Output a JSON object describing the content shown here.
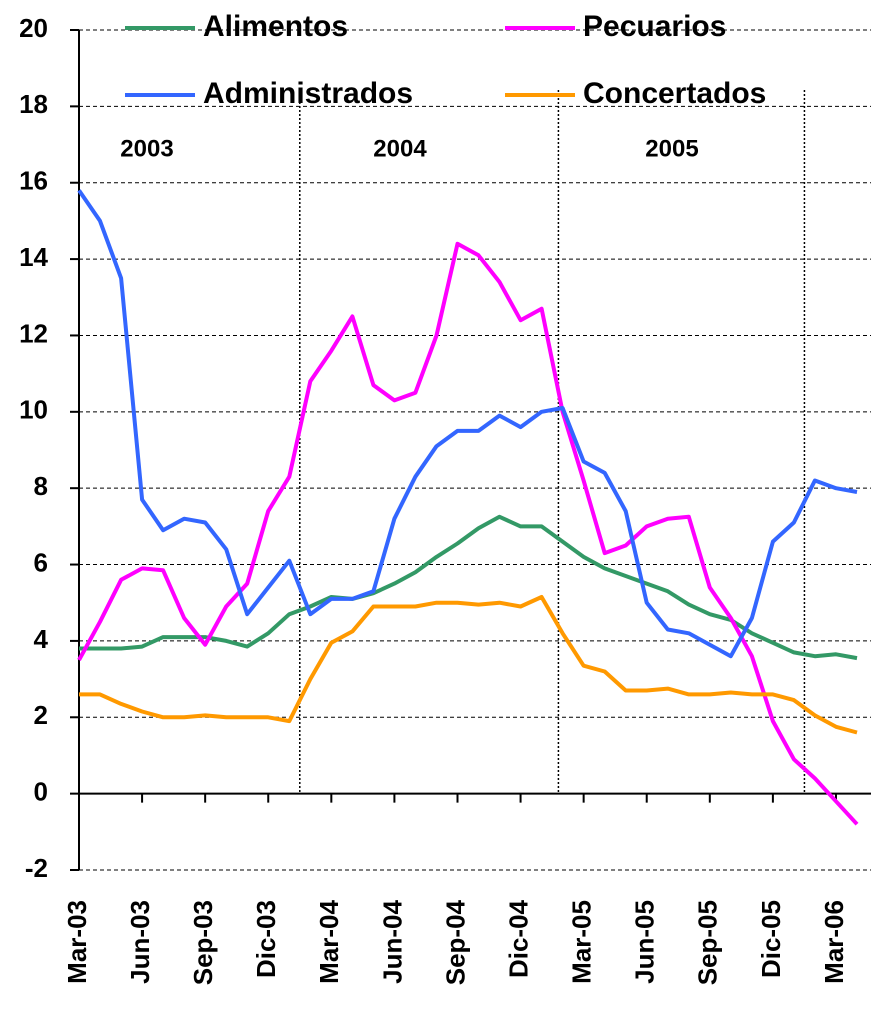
{
  "chart_data": {
    "type": "line",
    "categories": [
      "Mar-03",
      null,
      null,
      "Jun-03",
      null,
      null,
      "Sep-03",
      null,
      null,
      "Dic-03",
      null,
      null,
      "Mar-04",
      null,
      null,
      "Jun-04",
      null,
      null,
      "Sep-04",
      null,
      null,
      "Dic-04",
      null,
      null,
      "Mar-05",
      null,
      null,
      "Jun-05",
      null,
      null,
      "Sep-05",
      null,
      null,
      "Dic-05",
      null,
      null,
      "Mar-06",
      null
    ],
    "series": [
      {
        "name": "Alimentos",
        "color": "#339966",
        "values": [
          3.8,
          3.8,
          3.8,
          3.85,
          4.1,
          4.1,
          4.1,
          4.0,
          3.85,
          4.2,
          4.7,
          4.9,
          5.15,
          5.1,
          5.25,
          5.5,
          5.8,
          6.2,
          6.55,
          6.95,
          7.25,
          7.0,
          7.0,
          6.6,
          6.2,
          5.9,
          5.7,
          5.5,
          5.3,
          4.95,
          4.7,
          4.55,
          4.2,
          3.95,
          3.7,
          3.6,
          3.65,
          3.55
        ]
      },
      {
        "name": "Pecuarios",
        "color": "#ff00ff",
        "values": [
          3.5,
          4.5,
          5.6,
          5.9,
          5.85,
          4.6,
          3.9,
          4.9,
          5.5,
          7.4,
          8.3,
          10.8,
          11.6,
          12.5,
          10.7,
          10.3,
          10.5,
          12.0,
          14.4,
          14.1,
          13.4,
          12.4,
          12.7,
          10.0,
          8.2,
          6.3,
          6.5,
          7.0,
          7.2,
          7.25,
          5.4,
          4.6,
          3.6,
          1.9,
          0.9,
          0.4,
          -0.2,
          -0.8
        ]
      },
      {
        "name": "Administrados",
        "color": "#3366ff",
        "values": [
          15.8,
          15.0,
          13.5,
          7.7,
          6.9,
          7.2,
          7.1,
          6.4,
          4.7,
          5.4,
          6.1,
          4.7,
          5.1,
          5.1,
          5.3,
          7.2,
          8.3,
          9.1,
          9.5,
          9.5,
          9.9,
          9.6,
          10.0,
          10.1,
          8.7,
          8.4,
          7.4,
          5.0,
          4.3,
          4.2,
          3.9,
          3.6,
          4.6,
          6.6,
          7.1,
          8.2,
          8.0,
          7.9
        ]
      },
      {
        "name": "Concertados",
        "color": "#ff9900",
        "values": [
          2.6,
          2.6,
          2.35,
          2.15,
          2.0,
          2.0,
          2.05,
          2.0,
          2.0,
          2.0,
          1.9,
          3.0,
          3.95,
          4.25,
          4.9,
          4.9,
          4.9,
          5.0,
          5.0,
          4.95,
          5.0,
          4.9,
          5.15,
          4.2,
          3.35,
          3.2,
          2.7,
          2.7,
          2.75,
          2.6,
          2.6,
          2.65,
          2.6,
          2.6,
          2.45,
          2.05,
          1.75,
          1.6
        ]
      }
    ],
    "annotations": [
      "2003",
      "2004",
      "2005"
    ],
    "ylim": [
      -2,
      20
    ],
    "yticks": [
      -2,
      0,
      2,
      4,
      6,
      8,
      10,
      12,
      14,
      16,
      18,
      20
    ],
    "grid": true,
    "legend": "top"
  }
}
